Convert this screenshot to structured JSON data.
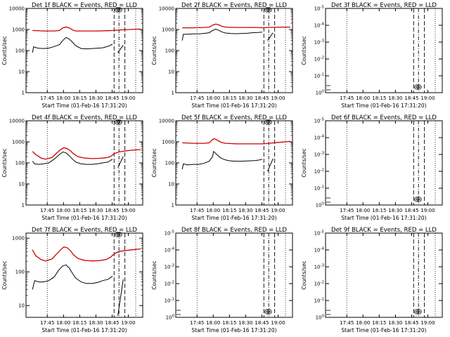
{
  "page": {
    "xlabel": "Start Time (01-Feb-16 17:31:20)",
    "ylabel": "Counts/sec",
    "x_ticks": [
      "17:45",
      "18:00",
      "18:15",
      "18:30",
      "18:45",
      "19:00"
    ]
  },
  "colors": {
    "events": "#000000",
    "lld": "#cc0000",
    "axis": "#000000"
  },
  "chart_data": [
    {
      "type": "line",
      "title": "Det 1f BLACK = Events, RED = LLD",
      "xlabel": "Start Time (01-Feb-16 17:31:20)",
      "ylabel": "Counts/sec",
      "yscale": "log",
      "x_range_min": [
        -6,
        102
      ],
      "y_ticks": [
        "1",
        "10",
        "100",
        "1000",
        "10000"
      ],
      "has_data": true,
      "series": [
        {
          "name": "Events",
          "color": "#000000",
          "x": [
            0,
            1,
            5,
            10,
            15,
            20,
            25,
            28,
            31,
            34,
            37,
            40,
            45,
            50,
            55,
            60,
            65,
            70,
            74
          ],
          "y": [
            80,
            150,
            130,
            125,
            130,
            155,
            190,
            300,
            420,
            350,
            250,
            170,
            125,
            120,
            125,
            130,
            135,
            160,
            200
          ]
        },
        {
          "name": "LLD",
          "color": "#cc0000",
          "x": [
            0,
            10,
            20,
            25,
            28,
            31,
            34,
            37,
            40,
            50,
            60,
            70,
            75,
            80,
            90,
            100
          ],
          "y": [
            900,
            850,
            850,
            900,
            1200,
            1300,
            1200,
            950,
            850,
            850,
            850,
            880,
            900,
            950,
            1000,
            1050
          ]
        }
      ],
      "spike_x": [
        79,
        84
      ],
      "spike_y": [
        80,
        180
      ]
    },
    {
      "type": "line",
      "title": "Det 2f BLACK = Events, RED = LLD",
      "xlabel": "Start Time (01-Feb-16 17:31:20)",
      "ylabel": "Counts/sec",
      "yscale": "log",
      "x_range_min": [
        -6,
        102
      ],
      "y_ticks": [
        "1",
        "10",
        "100",
        "1000",
        "10000"
      ],
      "has_data": true,
      "series": [
        {
          "name": "Events",
          "color": "#000000",
          "x": [
            0,
            1,
            5,
            10,
            15,
            20,
            25,
            28,
            31,
            34,
            37,
            40,
            45,
            50,
            55,
            60,
            65,
            70,
            74
          ],
          "y": [
            300,
            600,
            600,
            620,
            620,
            650,
            700,
            900,
            1050,
            900,
            750,
            680,
            640,
            630,
            650,
            660,
            700,
            720,
            750
          ]
        },
        {
          "name": "LLD",
          "color": "#cc0000",
          "x": [
            0,
            10,
            20,
            25,
            28,
            31,
            34,
            37,
            40,
            50,
            60,
            70,
            75,
            80,
            90,
            100
          ],
          "y": [
            1200,
            1200,
            1250,
            1300,
            1600,
            1800,
            1650,
            1400,
            1300,
            1250,
            1250,
            1250,
            1200,
            1250,
            1300,
            1300
          ]
        }
      ],
      "spike_x": [
        79,
        84
      ],
      "spike_y": [
        300,
        700
      ]
    },
    {
      "type": "line",
      "title": "Det 3f BLACK = Events, RED = LLD",
      "xlabel": "Start Time (01-Feb-16 17:31:20)",
      "ylabel": "Counts/sec",
      "yscale": "log",
      "x_range_min": [
        -6,
        102
      ],
      "y_ticks": [
        "10^0",
        "10^-1",
        "10^-2",
        "10^-3",
        "10^-4",
        "10^-5"
      ],
      "has_data": false,
      "series": []
    },
    {
      "type": "line",
      "title": "Det 4f BLACK = Events, RED = LLD",
      "xlabel": "Start Time (01-Feb-16 17:31:20)",
      "ylabel": "Counts/sec",
      "yscale": "log",
      "x_range_min": [
        -6,
        102
      ],
      "y_ticks": [
        "1",
        "10",
        "100",
        "1000",
        "10000"
      ],
      "has_data": true,
      "series": [
        {
          "name": "Events",
          "color": "#000000",
          "x": [
            0,
            2,
            6,
            10,
            15,
            20,
            25,
            28,
            31,
            34,
            37,
            40,
            45,
            50,
            55,
            60,
            65,
            70,
            74
          ],
          "y": [
            120,
            90,
            85,
            90,
            100,
            150,
            250,
            330,
            300,
            220,
            150,
            110,
            90,
            85,
            85,
            90,
            100,
            110,
            150
          ]
        },
        {
          "name": "LLD",
          "color": "#cc0000",
          "x": [
            0,
            3,
            8,
            12,
            18,
            22,
            26,
            29,
            32,
            35,
            38,
            42,
            48,
            55,
            62,
            68,
            72,
            76,
            80,
            86,
            92,
            100
          ],
          "y": [
            350,
            250,
            170,
            150,
            180,
            280,
            430,
            520,
            480,
            380,
            270,
            200,
            170,
            160,
            165,
            175,
            200,
            280,
            330,
            370,
            400,
            430
          ]
        }
      ],
      "spike_x": [
        79,
        84
      ],
      "spike_y": [
        60,
        200
      ]
    },
    {
      "type": "line",
      "title": "Det 5f BLACK = Events, RED = LLD",
      "xlabel": "Start Time (01-Feb-16 17:31:20)",
      "ylabel": "Counts/sec",
      "yscale": "log",
      "x_range_min": [
        -6,
        102
      ],
      "y_ticks": [
        "1",
        "10",
        "100",
        "1000",
        "10000"
      ],
      "has_data": true,
      "series": [
        {
          "name": "Events",
          "color": "#000000",
          "x": [
            0,
            1,
            5,
            10,
            15,
            20,
            25,
            28,
            29,
            32,
            35,
            38,
            42,
            48,
            55,
            62,
            68,
            72,
            74
          ],
          "y": [
            50,
            90,
            80,
            85,
            85,
            95,
            120,
            200,
            350,
            250,
            180,
            150,
            130,
            120,
            120,
            125,
            130,
            140,
            150
          ]
        },
        {
          "name": "LLD",
          "color": "#cc0000",
          "x": [
            0,
            10,
            20,
            25,
            28,
            30,
            33,
            36,
            40,
            50,
            60,
            70,
            75,
            80,
            90,
            100
          ],
          "y": [
            900,
            850,
            850,
            900,
            1300,
            1400,
            1150,
            950,
            850,
            800,
            800,
            800,
            800,
            850,
            950,
            1050
          ]
        }
      ],
      "spike_x": [
        79,
        84
      ],
      "spike_y": [
        40,
        160
      ]
    },
    {
      "type": "line",
      "title": "Det 6f BLACK = Events, RED = LLD",
      "xlabel": "Start Time (01-Feb-16 17:31:20)",
      "ylabel": "Counts/sec",
      "yscale": "log",
      "x_range_min": [
        -6,
        102
      ],
      "y_ticks": [
        "10^0",
        "10^-1",
        "10^-2",
        "10^-3",
        "10^-4",
        "10^-5"
      ],
      "has_data": false,
      "series": []
    },
    {
      "type": "line",
      "title": "Det 7f BLACK = Events, RED = LLD",
      "xlabel": "Start Time (01-Feb-16 17:31:20)",
      "ylabel": "Counts/sec",
      "yscale": "log",
      "x_range_min": [
        -6,
        102
      ],
      "y_ticks": [
        "10",
        "100",
        "1000"
      ],
      "has_data": true,
      "series": [
        {
          "name": "Events",
          "color": "#000000",
          "x": [
            0,
            2,
            6,
            10,
            15,
            20,
            24,
            28,
            31,
            34,
            37,
            40,
            45,
            50,
            55,
            60,
            65,
            70,
            74
          ],
          "y": [
            30,
            55,
            50,
            50,
            55,
            70,
            110,
            150,
            160,
            130,
            90,
            65,
            50,
            45,
            45,
            48,
            55,
            60,
            75
          ]
        },
        {
          "name": "LLD",
          "color": "#cc0000",
          "x": [
            0,
            3,
            8,
            12,
            18,
            22,
            26,
            29,
            32,
            35,
            38,
            42,
            48,
            55,
            62,
            68,
            72,
            76,
            80,
            86,
            92,
            100
          ],
          "y": [
            450,
            300,
            230,
            210,
            240,
            330,
            450,
            550,
            520,
            430,
            320,
            250,
            220,
            210,
            215,
            230,
            270,
            350,
            400,
            430,
            450,
            480
          ]
        }
      ],
      "spike_x": [
        79,
        84
      ],
      "spike_y": [
        5,
        60
      ]
    },
    {
      "type": "line",
      "title": "Det 8f BLACK = Events, RED = LLD",
      "xlabel": "Start Time (01-Feb-16 17:31:20)",
      "ylabel": "Counts/sec",
      "yscale": "log",
      "x_range_min": [
        -6,
        102
      ],
      "y_ticks": [
        "10^0",
        "10^-1",
        "10^-2",
        "10^-3",
        "10^-4",
        "10^-5"
      ],
      "has_data": false,
      "series": []
    },
    {
      "type": "line",
      "title": "Det 9f BLACK = Events, RED = LLD",
      "xlabel": "Start Time (01-Feb-16 17:31:20)",
      "ylabel": "Counts/sec",
      "yscale": "log",
      "x_range_min": [
        -6,
        102
      ],
      "y_ticks": [
        "10^0",
        "10^-1",
        "10^-2",
        "10^-3",
        "10^-4",
        "10^-5"
      ],
      "has_data": false,
      "series": []
    }
  ]
}
